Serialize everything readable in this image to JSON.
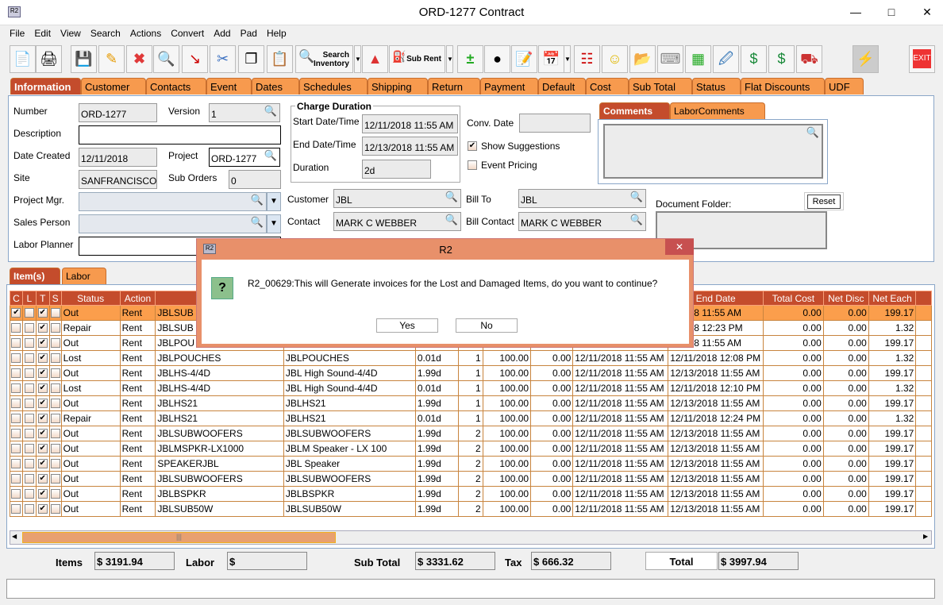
{
  "window": {
    "title": "ORD-1277 Contract",
    "app_icon": "R2"
  },
  "menu": [
    "File",
    "Edit",
    "View",
    "Search",
    "Actions",
    "Convert",
    "Add",
    "Pad",
    "Help"
  ],
  "toolbar": {
    "search_inventory": "Search Inventory",
    "sub_rent": "Sub Rent",
    "exit": "EXIT"
  },
  "tabs": [
    "Information",
    "Customer",
    "Contacts",
    "Event",
    "Dates",
    "Schedules",
    "Shipping",
    "Return",
    "Payment",
    "Default",
    "Cost",
    "Sub Total",
    "Status",
    "Flat Discounts",
    "UDF"
  ],
  "info": {
    "number_label": "Number",
    "number": "ORD-1277",
    "version_label": "Version",
    "version": "1",
    "description_label": "Description",
    "description": "",
    "date_created_label": "Date Created",
    "date_created": "12/11/2018",
    "project_label": "Project",
    "project": "ORD-1277",
    "site_label": "Site",
    "site": "SANFRANCISCO",
    "sub_orders_label": "Sub Orders",
    "sub_orders": "0",
    "project_mgr_label": "Project Mgr.",
    "project_mgr": "",
    "sales_person_label": "Sales Person",
    "sales_person": "",
    "labor_planner_label": "Labor Planner",
    "labor_planner": "",
    "charge_duration_title": "Charge Duration",
    "start_label": "Start Date/Time",
    "start": "12/11/2018 11:55 AM",
    "end_label": "End Date/Time",
    "end": "12/13/2018 11:55 AM",
    "duration_label": "Duration",
    "duration": "2d",
    "conv_date_label": "Conv. Date",
    "conv_date": "",
    "show_suggestions_label": "Show Suggestions",
    "show_suggestions": true,
    "event_pricing_label": "Event Pricing",
    "event_pricing": false,
    "customer_label": "Customer",
    "customer": "JBL",
    "contact_label": "Contact",
    "contact": "MARK C WEBBER",
    "bill_to_label": "Bill To",
    "bill_to": "JBL",
    "bill_contact_label": "Bill Contact",
    "bill_contact": "MARK C WEBBER",
    "comment_tabs": [
      "Comments",
      "LaborComments"
    ],
    "document_folder_label": "Document Folder:",
    "reset": "Reset"
  },
  "lower_tabs": [
    "Item(s)",
    "Labor"
  ],
  "table": {
    "headers": [
      "C",
      "L",
      "T",
      "S",
      "Status",
      "Action",
      "",
      "",
      "",
      "",
      "",
      "",
      "",
      "End Date",
      "Total Cost",
      "Net Disc",
      "Net Each"
    ],
    "rows": [
      {
        "c": true,
        "t": true,
        "status": "Out",
        "action": "Rent",
        "item": "JBLSUB",
        "desc": "",
        "dur": "",
        "qty": "",
        "price": "",
        "disc": "",
        "start": "",
        "end": "3/2018 11:55 AM",
        "cost": "0.00",
        "netdisc": "0.00",
        "each": "199.17"
      },
      {
        "c": false,
        "t": true,
        "status": "Repair",
        "action": "Rent",
        "item": "JBLSUB",
        "desc": "",
        "dur": "",
        "qty": "",
        "price": "",
        "disc": "",
        "start": "",
        "end": "1/2018 12:23 PM",
        "cost": "0.00",
        "netdisc": "0.00",
        "each": "1.32"
      },
      {
        "c": false,
        "t": true,
        "status": "Out",
        "action": "Rent",
        "item": "JBLPOU",
        "desc": "",
        "dur": "",
        "qty": "",
        "price": "",
        "disc": "",
        "start": "",
        "end": "3/2018 11:55 AM",
        "cost": "0.00",
        "netdisc": "0.00",
        "each": "199.17"
      },
      {
        "c": false,
        "t": true,
        "status": "Lost",
        "action": "Rent",
        "item": "JBLPOUCHES",
        "desc": "JBLPOUCHES",
        "dur": "0.01d",
        "qty": "1",
        "price": "100.00",
        "disc": "0.00",
        "start": "12/11/2018 11:55 AM",
        "end": "12/11/2018 12:08 PM",
        "cost": "0.00",
        "netdisc": "0.00",
        "each": "1.32"
      },
      {
        "c": false,
        "t": true,
        "status": "Out",
        "action": "Rent",
        "item": "JBLHS-4/4D",
        "desc": "JBL High Sound-4/4D",
        "dur": "1.99d",
        "qty": "1",
        "price": "100.00",
        "disc": "0.00",
        "start": "12/11/2018 11:55 AM",
        "end": "12/13/2018 11:55 AM",
        "cost": "0.00",
        "netdisc": "0.00",
        "each": "199.17"
      },
      {
        "c": false,
        "t": true,
        "status": "Lost",
        "action": "Rent",
        "item": "JBLHS-4/4D",
        "desc": "JBL High Sound-4/4D",
        "dur": "0.01d",
        "qty": "1",
        "price": "100.00",
        "disc": "0.00",
        "start": "12/11/2018 11:55 AM",
        "end": "12/11/2018 12:10 PM",
        "cost": "0.00",
        "netdisc": "0.00",
        "each": "1.32"
      },
      {
        "c": false,
        "t": true,
        "status": "Out",
        "action": "Rent",
        "item": "JBLHS21",
        "desc": "JBLHS21",
        "dur": "1.99d",
        "qty": "1",
        "price": "100.00",
        "disc": "0.00",
        "start": "12/11/2018 11:55 AM",
        "end": "12/13/2018 11:55 AM",
        "cost": "0.00",
        "netdisc": "0.00",
        "each": "199.17"
      },
      {
        "c": false,
        "t": true,
        "status": "Repair",
        "action": "Rent",
        "item": "JBLHS21",
        "desc": "JBLHS21",
        "dur": "0.01d",
        "qty": "1",
        "price": "100.00",
        "disc": "0.00",
        "start": "12/11/2018 11:55 AM",
        "end": "12/11/2018 12:24 PM",
        "cost": "0.00",
        "netdisc": "0.00",
        "each": "1.32"
      },
      {
        "c": false,
        "t": true,
        "status": "Out",
        "action": "Rent",
        "item": "JBLSUBWOOFERS",
        "desc": "JBLSUBWOOFERS",
        "dur": "1.99d",
        "qty": "2",
        "price": "100.00",
        "disc": "0.00",
        "start": "12/11/2018 11:55 AM",
        "end": "12/13/2018 11:55 AM",
        "cost": "0.00",
        "netdisc": "0.00",
        "each": "199.17"
      },
      {
        "c": false,
        "t": true,
        "status": "Out",
        "action": "Rent",
        "item": "JBLMSPKR-LX1000",
        "desc": "JBLM Speaker - LX 100",
        "dur": "1.99d",
        "qty": "2",
        "price": "100.00",
        "disc": "0.00",
        "start": "12/11/2018 11:55 AM",
        "end": "12/13/2018 11:55 AM",
        "cost": "0.00",
        "netdisc": "0.00",
        "each": "199.17"
      },
      {
        "c": false,
        "t": true,
        "status": "Out",
        "action": "Rent",
        "item": "SPEAKERJBL",
        "desc": "JBL Speaker",
        "dur": "1.99d",
        "qty": "2",
        "price": "100.00",
        "disc": "0.00",
        "start": "12/11/2018 11:55 AM",
        "end": "12/13/2018 11:55 AM",
        "cost": "0.00",
        "netdisc": "0.00",
        "each": "199.17"
      },
      {
        "c": false,
        "t": true,
        "status": "Out",
        "action": "Rent",
        "item": "JBLSUBWOOFERS",
        "desc": "JBLSUBWOOFERS",
        "dur": "1.99d",
        "qty": "2",
        "price": "100.00",
        "disc": "0.00",
        "start": "12/11/2018 11:55 AM",
        "end": "12/13/2018 11:55 AM",
        "cost": "0.00",
        "netdisc": "0.00",
        "each": "199.17"
      },
      {
        "c": false,
        "t": true,
        "status": "Out",
        "action": "Rent",
        "item": "JBLBSPKR",
        "desc": "JBLBSPKR",
        "dur": "1.99d",
        "qty": "2",
        "price": "100.00",
        "disc": "0.00",
        "start": "12/11/2018 11:55 AM",
        "end": "12/13/2018 11:55 AM",
        "cost": "0.00",
        "netdisc": "0.00",
        "each": "199.17"
      },
      {
        "c": false,
        "t": true,
        "status": "Out",
        "action": "Rent",
        "item": "JBLSUB50W",
        "desc": "JBLSUB50W",
        "dur": "1.99d",
        "qty": "2",
        "price": "100.00",
        "disc": "0.00",
        "start": "12/11/2018 11:55 AM",
        "end": "12/13/2018 11:55 AM",
        "cost": "0.00",
        "netdisc": "0.00",
        "each": "199.17"
      }
    ]
  },
  "totals": {
    "items_label": "Items",
    "items": "$ 3191.94",
    "labor_label": "Labor",
    "labor": "$",
    "subtotal_label": "Sub Total",
    "subtotal": "$ 3331.62",
    "tax_label": "Tax",
    "tax": "$ 666.32",
    "total_label": "Total",
    "total": "$ 3997.94"
  },
  "dialog": {
    "title": "R2",
    "icon": "R2",
    "message": "R2_00629:This will Generate invoices for the Lost and Damaged Items, do you want to continue?",
    "yes": "Yes",
    "no": "No"
  },
  "colors": {
    "accent": "#c44c2c",
    "tab": "#f79a4e",
    "selected_row": "#fb9e4c",
    "dialog_title": "#e8906a"
  }
}
